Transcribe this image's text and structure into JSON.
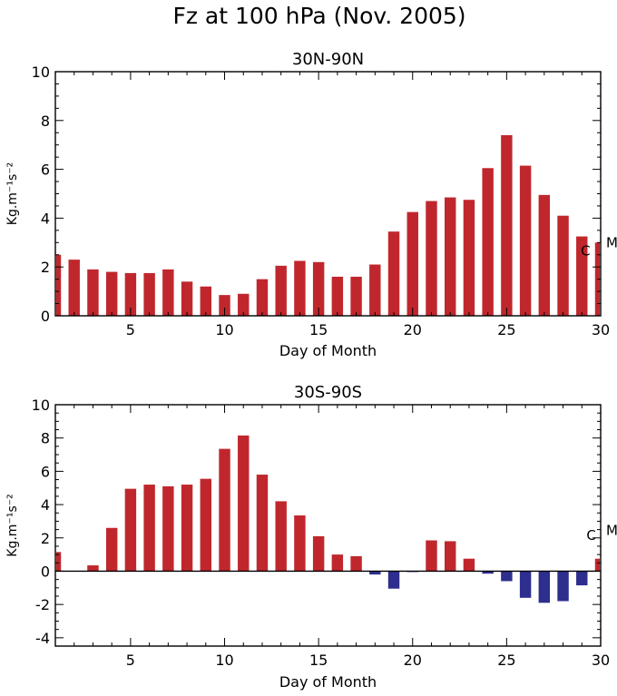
{
  "title": "Fz at 100 hPa (Nov. 2005)",
  "colors": {
    "positive": "#c0272d",
    "negative": "#2e2e8f"
  },
  "chart_data": [
    {
      "type": "bar",
      "title": "30N-90N",
      "xlabel": "Day of Month",
      "ylabel": "Kg.m⁻¹s⁻²",
      "xlim": [
        1,
        30
      ],
      "ylim": [
        0,
        10
      ],
      "xticks": [
        5,
        10,
        15,
        20,
        25,
        30
      ],
      "yticks": [
        0,
        2,
        4,
        6,
        8,
        10
      ],
      "x": [
        1,
        2,
        3,
        4,
        5,
        6,
        7,
        8,
        9,
        10,
        11,
        12,
        13,
        14,
        15,
        16,
        17,
        18,
        19,
        20,
        21,
        22,
        23,
        24,
        25,
        26,
        27,
        28,
        29,
        30
      ],
      "values": [
        2.5,
        2.3,
        1.9,
        1.8,
        1.75,
        1.75,
        1.9,
        1.4,
        1.2,
        0.85,
        0.9,
        1.5,
        2.05,
        2.25,
        2.2,
        1.6,
        1.6,
        2.1,
        3.45,
        4.25,
        4.7,
        4.85,
        4.75,
        6.05,
        7.4,
        6.15,
        4.95,
        4.1,
        3.25,
        3.0
      ],
      "annotations": [
        {
          "text": "C",
          "x": 29.2,
          "y": 2.65
        },
        {
          "text": "M",
          "x": 30.6,
          "y": 3.0
        }
      ]
    },
    {
      "type": "bar",
      "title": "30S-90S",
      "xlabel": "Day of Month",
      "ylabel": "Kg.m⁻¹s⁻²",
      "xlim": [
        1,
        30
      ],
      "ylim": [
        -4.5,
        10
      ],
      "xticks": [
        5,
        10,
        15,
        20,
        25,
        30
      ],
      "yticks": [
        -4,
        -2,
        0,
        2,
        4,
        6,
        8,
        10
      ],
      "zero_line": true,
      "x": [
        1,
        2,
        3,
        4,
        5,
        6,
        7,
        8,
        9,
        10,
        11,
        12,
        13,
        14,
        15,
        16,
        17,
        18,
        19,
        20,
        21,
        22,
        23,
        24,
        25,
        26,
        27,
        28,
        29,
        30
      ],
      "values": [
        1.15,
        0,
        0.35,
        2.6,
        4.95,
        5.2,
        5.1,
        5.2,
        5.55,
        7.35,
        8.15,
        5.8,
        4.2,
        3.35,
        2.1,
        1.0,
        0.9,
        -0.2,
        -1.05,
        -0.05,
        1.85,
        1.8,
        0.75,
        -0.15,
        -0.6,
        -1.6,
        -1.9,
        -1.8,
        -0.85,
        0.75
      ],
      "annotations": [
        {
          "text": "C",
          "x": 29.5,
          "y": 2.15
        },
        {
          "text": "M",
          "x": 30.6,
          "y": 2.45
        }
      ]
    }
  ]
}
